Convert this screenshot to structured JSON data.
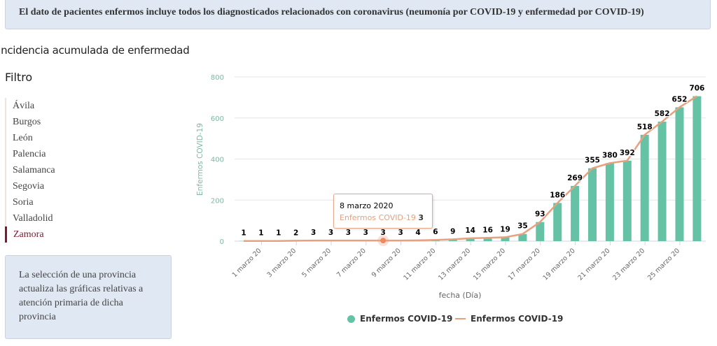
{
  "notice": "El dato de pacientes enfermos incluye todos los diagnosticados relacionados con coronavirus (neumonía por COVID-19 y enfermedad por COVID-19)",
  "section_title": "Incidencia acumulada de enfermedad",
  "filter": {
    "title": "Filtro",
    "provinces": [
      "Ávila",
      "Burgos",
      "León",
      "Palencia",
      "Salamanca",
      "Segovia",
      "Soria",
      "Valladolid",
      "Zamora"
    ],
    "selected": "Zamora"
  },
  "info": "La selección de una provincia actualiza las gráficas relativas a atención primaria de dicha provincia",
  "tooltip": {
    "date": "8 marzo 2020",
    "series": "Enfermos COVID-19",
    "value": "3"
  },
  "chart_data": {
    "type": "bar+line",
    "title": "",
    "xlabel": "fecha (Día)",
    "ylabel": "Enfermos COVID-19",
    "ylim": [
      0,
      800
    ],
    "yticks": [
      "0",
      "200",
      "400",
      "600",
      "800"
    ],
    "tick_labels": [
      "1 marzo 20",
      "3 marzo 20",
      "5 marzo 20",
      "7 marzo 20",
      "9 marzo 20",
      "11 marzo 20",
      "13 marzo 20",
      "15 marzo 20",
      "17 marzo 20",
      "19 marzo 20",
      "21 marzo 20",
      "23 marzo 20",
      "25 marzo 20"
    ],
    "values": [
      1,
      1,
      1,
      2,
      3,
      3,
      3,
      3,
      3,
      3,
      4,
      6,
      9,
      14,
      16,
      19,
      35,
      93,
      186,
      269,
      355,
      380,
      392,
      518,
      582,
      652,
      706
    ],
    "series": [
      {
        "name": "Enfermos COVID-19",
        "kind": "bar",
        "color": "#66c2a5"
      },
      {
        "name": "Enfermos COVID-19",
        "kind": "line",
        "color": "#e8a07e"
      }
    ],
    "legend": "bottom-center",
    "grid": true
  }
}
